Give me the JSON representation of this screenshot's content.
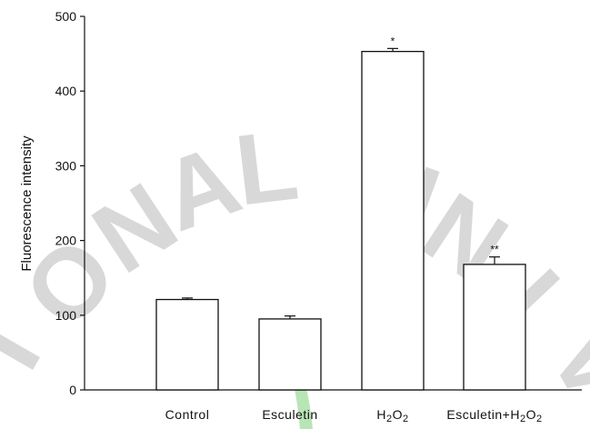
{
  "chart_data": {
    "type": "bar",
    "ylabel": "Fluorescence intensity",
    "xlabel": "",
    "ylim": [
      0,
      500
    ],
    "yticks": [
      0,
      100,
      200,
      300,
      400,
      500
    ],
    "categories": [
      {
        "label": "Control",
        "parts": [
          {
            "t": "Control"
          }
        ]
      },
      {
        "label": "Esculetin",
        "parts": [
          {
            "t": "Esculetin"
          }
        ]
      },
      {
        "label": "H2O2",
        "parts": [
          {
            "t": "H"
          },
          {
            "t": "2",
            "sub": true
          },
          {
            "t": "O"
          },
          {
            "t": "2",
            "sub": true
          }
        ]
      },
      {
        "label": "Esculetin+H2O2",
        "parts": [
          {
            "t": "Esculetin+H"
          },
          {
            "t": "2",
            "sub": true
          },
          {
            "t": "O"
          },
          {
            "t": "2",
            "sub": true
          }
        ]
      }
    ],
    "values": [
      121,
      95,
      453,
      168
    ],
    "errors": [
      2,
      4,
      4,
      10
    ],
    "significance": [
      "",
      "",
      "*",
      "**"
    ],
    "grid": false,
    "legend": "none"
  },
  "watermark": {
    "text": "IONAL UNIV",
    "color": "#d8d8d8",
    "accent_color": "#7ed07a"
  },
  "colors": {
    "axis": "#111111",
    "bar_fill": "#ffffff",
    "bar_stroke": "#111111"
  }
}
